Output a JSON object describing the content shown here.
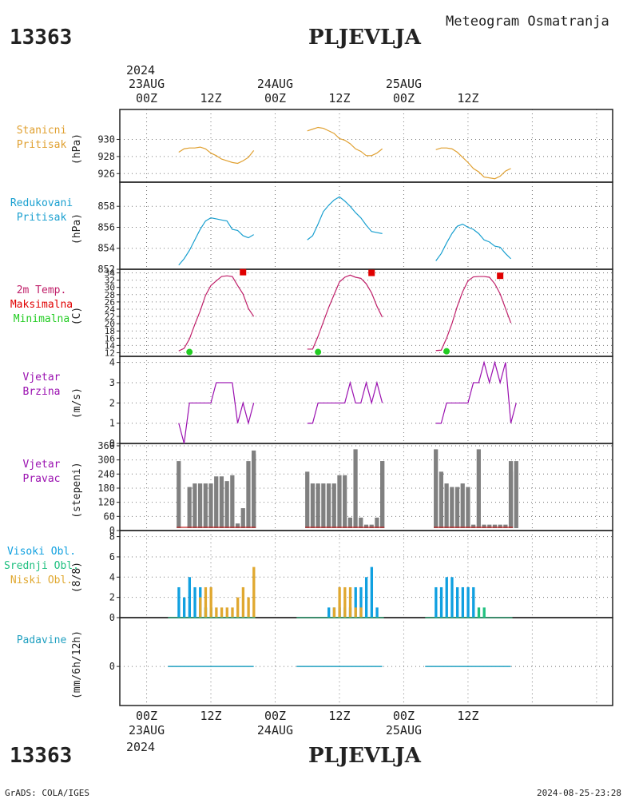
{
  "header": {
    "station_id": "13363",
    "station_name": "PLJEVLJA",
    "product": "Meteogram Osmatranja",
    "year": "2024",
    "footer_left": "GrADS: COLA/IGES",
    "footer_right": "2024-08-25-23:28"
  },
  "time_axis": {
    "hours": [
      "00Z",
      "12Z",
      "00Z",
      "12Z",
      "00Z",
      "12Z"
    ],
    "dates": [
      "23AUG",
      "24AUG",
      "25AUG"
    ]
  },
  "panels": {
    "station_pressure": {
      "labels": [
        "Stanicni",
        "Pritisak"
      ],
      "unit": "(hPa)",
      "ticks": [
        "926",
        "928",
        "930"
      ]
    },
    "reduced_pressure": {
      "labels": [
        "Redukovani",
        "Pritisak"
      ],
      "unit": "(hPa)",
      "ticks": [
        "852",
        "854",
        "856",
        "858"
      ]
    },
    "temperature": {
      "labels": [
        "2m Temp.",
        "Maksimalna",
        "Minimalna"
      ],
      "unit": "(C)",
      "ticks": [
        "12",
        "14",
        "16",
        "18",
        "20",
        "22",
        "24",
        "26",
        "28",
        "30",
        "32",
        "34"
      ]
    },
    "wind_speed": {
      "labels": [
        "Vjetar",
        "Brzina"
      ],
      "unit": "(m/s)",
      "ticks": [
        "0",
        "1",
        "2",
        "3",
        "4"
      ]
    },
    "wind_direction": {
      "labels": [
        "Vjetar",
        "Pravac"
      ],
      "unit": "(stepeni)",
      "ticks": [
        "0",
        "60",
        "120",
        "180",
        "240",
        "300",
        "360"
      ]
    },
    "clouds": {
      "labels": [
        "Visoki Obl.",
        "Srednji Obl.",
        "Niski Obl."
      ],
      "unit": "(8/8)",
      "ticks": [
        "0",
        "2",
        "4",
        "6",
        "8"
      ]
    },
    "precipitation": {
      "labels": [
        "Padavine"
      ],
      "unit": "(mm/6h/12h)",
      "ticks": [
        "0"
      ]
    }
  },
  "colors": {
    "station_pressure": "#e0a030",
    "reduced_pressure": "#1aa0d0",
    "temperature": "#c0206a",
    "maximum": "#e00000",
    "minimum": "#22cc22",
    "wind": "#9a10b0",
    "wind_direction_bar": "#808080",
    "high_cloud": "#10a0e0",
    "mid_cloud": "#20c080",
    "low_cloud": "#e0a830",
    "precipitation": "#20a0c0"
  },
  "chart_data": {
    "type": "line",
    "x_unit": "hours from 2024-08-23 00Z",
    "xlim": [
      -5,
      87
    ],
    "station_pressure": {
      "ylim": [
        925,
        933.5
      ],
      "series": [
        {
          "x": [
            6,
            7,
            8,
            9,
            10,
            11,
            12,
            13,
            14,
            15,
            16,
            17,
            18,
            19,
            20
          ],
          "values": [
            928.5,
            928.9,
            929.0,
            929.0,
            929.1,
            928.9,
            928.4,
            928.1,
            927.7,
            927.5,
            927.3,
            927.2,
            927.5,
            927.9,
            928.7
          ]
        },
        {
          "x": [
            30,
            31,
            32,
            33,
            34,
            35,
            36,
            37,
            38,
            39,
            40,
            41,
            42,
            43,
            44
          ],
          "values": [
            931.0,
            931.2,
            931.4,
            931.3,
            931.0,
            930.7,
            930.1,
            929.9,
            929.5,
            928.9,
            928.6,
            928.1,
            928.1,
            928.4,
            928.9
          ]
        },
        {
          "x": [
            54,
            55,
            56,
            57,
            58,
            59,
            60,
            61,
            62,
            63,
            64,
            65,
            66,
            67,
            68
          ],
          "values": [
            928.8,
            929.0,
            929.0,
            928.9,
            928.5,
            927.9,
            927.3,
            926.6,
            926.2,
            925.6,
            925.5,
            925.4,
            925.7,
            926.3,
            926.6
          ]
        }
      ]
    },
    "reduced_pressure": {
      "ylim": [
        852,
        860.3
      ],
      "series": [
        {
          "x": [
            6,
            7,
            8,
            9,
            10,
            11,
            12,
            13,
            14,
            15,
            16,
            17,
            18,
            19,
            20
          ],
          "values": [
            852.4,
            853.0,
            853.8,
            854.8,
            855.8,
            856.6,
            856.9,
            856.8,
            856.7,
            856.6,
            855.8,
            855.7,
            855.2,
            855.0,
            855.3
          ]
        },
        {
          "x": [
            30,
            31,
            32,
            33,
            34,
            35,
            36,
            37,
            38,
            39,
            40,
            41,
            42,
            43,
            44
          ],
          "values": [
            854.8,
            855.2,
            856.3,
            857.5,
            858.1,
            858.6,
            858.9,
            858.5,
            858.0,
            857.4,
            856.9,
            856.2,
            855.6,
            855.5,
            855.4
          ]
        },
        {
          "x": [
            54,
            55,
            56,
            57,
            58,
            59,
            60,
            61,
            62,
            63,
            64,
            65,
            66,
            67,
            68
          ],
          "values": [
            852.8,
            853.5,
            854.5,
            855.4,
            856.1,
            856.3,
            856.0,
            855.8,
            855.4,
            854.8,
            854.6,
            854.2,
            854.1,
            853.5,
            853.0
          ]
        }
      ]
    },
    "temperature": {
      "ylim": [
        11,
        35
      ],
      "series": [
        {
          "x": [
            6,
            7,
            8,
            9,
            10,
            11,
            12,
            13,
            14,
            15,
            16,
            17,
            18,
            19,
            20
          ],
          "values": [
            12.5,
            13.2,
            15.8,
            19.8,
            23.5,
            27.8,
            30.5,
            31.8,
            33.0,
            33.2,
            33.0,
            30.5,
            28.2,
            24.2,
            22.0
          ]
        },
        {
          "x": [
            30,
            31,
            32,
            33,
            34,
            35,
            36,
            37,
            38,
            39,
            40,
            41,
            42,
            43,
            44
          ],
          "values": [
            13.0,
            13.0,
            16.5,
            20.5,
            24.5,
            28.0,
            31.5,
            32.8,
            33.4,
            32.8,
            32.5,
            31.0,
            28.5,
            24.8,
            21.8
          ]
        },
        {
          "x": [
            54,
            55,
            56,
            57,
            58,
            59,
            60,
            61,
            62,
            63,
            64,
            65,
            66,
            67,
            68
          ],
          "values": [
            12.6,
            12.7,
            16.0,
            20.0,
            24.8,
            28.8,
            31.8,
            32.9,
            33.0,
            33.0,
            32.8,
            31.0,
            28.2,
            24.2,
            20.2
          ]
        }
      ],
      "maximum": [
        {
          "x": 18,
          "value": 34.2
        },
        {
          "x": 42,
          "value": 34.0
        },
        {
          "x": 66,
          "value": 33.2
        }
      ],
      "minimum": [
        {
          "x": 8,
          "value": 12.2
        },
        {
          "x": 32,
          "value": 12.2
        },
        {
          "x": 56,
          "value": 12.4
        }
      ]
    },
    "wind_speed": {
      "ylim": [
        0,
        4.3
      ],
      "series": [
        {
          "x": [
            6,
            7,
            8,
            9,
            10,
            11,
            12,
            13,
            14,
            15,
            16,
            17,
            18,
            19,
            20
          ],
          "values": [
            1,
            0,
            2,
            2,
            2,
            2,
            2,
            3,
            3,
            3,
            3,
            1,
            2,
            1,
            2
          ]
        },
        {
          "x": [
            30,
            31,
            32,
            33,
            34,
            35,
            36,
            37,
            38,
            39,
            40,
            41,
            42,
            43,
            44
          ],
          "values": [
            1,
            1,
            2,
            2,
            2,
            2,
            2,
            2,
            3,
            2,
            2,
            3,
            2,
            3,
            2
          ]
        },
        {
          "x": [
            54,
            55,
            56,
            57,
            58,
            59,
            60,
            61,
            62,
            63,
            64,
            65,
            66,
            67,
            68
          ],
          "values": [
            1,
            1,
            2,
            2,
            2,
            2,
            2,
            3,
            3,
            4,
            3,
            4,
            3,
            4,
            1
          ]
        }
      ],
      "tail": [
        {
          "x": 69,
          "value": 2
        },
        {
          "x": 44.5,
          "value": 1
        }
      ]
    },
    "wind_direction": {
      "ylim": [
        0,
        370
      ],
      "series": [
        {
          "x": [
            6,
            7,
            8,
            9,
            10,
            11,
            12,
            13,
            14,
            15,
            16,
            17,
            18,
            19,
            20
          ],
          "values": [
            295,
            0,
            185,
            200,
            200,
            200,
            200,
            230,
            230,
            210,
            235,
            30,
            95,
            295,
            325
          ]
        },
        {
          "x": [
            30,
            31,
            32,
            33,
            34,
            35,
            36,
            37,
            38,
            39,
            40,
            41,
            42,
            43,
            44
          ],
          "values": [
            250,
            200,
            200,
            200,
            200,
            200,
            235,
            235,
            55,
            345,
            55,
            25,
            25,
            55,
            295
          ]
        },
        {
          "x": [
            54,
            55,
            56,
            57,
            58,
            59,
            60,
            61,
            62,
            63,
            64,
            65,
            66,
            67,
            68
          ],
          "values": [
            345,
            250,
            200,
            185,
            185,
            200,
            185,
            25,
            345,
            25,
            25,
            25,
            25,
            25,
            295
          ]
        }
      ],
      "extra": [
        {
          "x": 20.0,
          "value": 340
        },
        {
          "x": 44.0,
          "value": 295
        },
        {
          "x": 68.0,
          "value": 250
        },
        {
          "x": 69.0,
          "value": 295
        }
      ]
    },
    "clouds": {
      "ylim": [
        0,
        8.6
      ],
      "high": [
        {
          "x": [
            6,
            7,
            8,
            9,
            10,
            11,
            12
          ],
          "values": [
            3,
            2,
            4,
            3,
            3,
            1,
            1
          ]
        },
        {
          "x": [
            34,
            35,
            36,
            37,
            38,
            39,
            40,
            41,
            42,
            43
          ],
          "values": [
            1,
            1,
            1,
            1,
            1,
            3,
            3,
            4,
            5,
            1
          ]
        },
        {
          "x": [
            54,
            55,
            56,
            57,
            58,
            59,
            60,
            61
          ],
          "values": [
            3,
            3,
            4,
            4,
            3,
            3,
            3,
            3
          ]
        }
      ],
      "mid": [
        {
          "x": [
            11,
            12
          ],
          "values": [
            1,
            1
          ]
        },
        {
          "x": [
            62,
            63
          ],
          "values": [
            1,
            1
          ]
        }
      ],
      "low": [
        {
          "x": [
            10,
            11,
            12,
            13,
            14,
            15,
            16,
            17,
            18,
            19,
            20
          ],
          "values": [
            2,
            3,
            3,
            1,
            1,
            1,
            1,
            2,
            3,
            2,
            5
          ]
        },
        {
          "x": [
            35,
            36,
            37,
            38,
            39,
            40
          ],
          "values": [
            1,
            3,
            3,
            3,
            1,
            1
          ]
        }
      ]
    },
    "precipitation": {
      "ylim": [
        -4,
        5
      ],
      "segments": [
        [
          4,
          20
        ],
        [
          28,
          44
        ],
        [
          52,
          68
        ]
      ],
      "value": 0
    }
  }
}
